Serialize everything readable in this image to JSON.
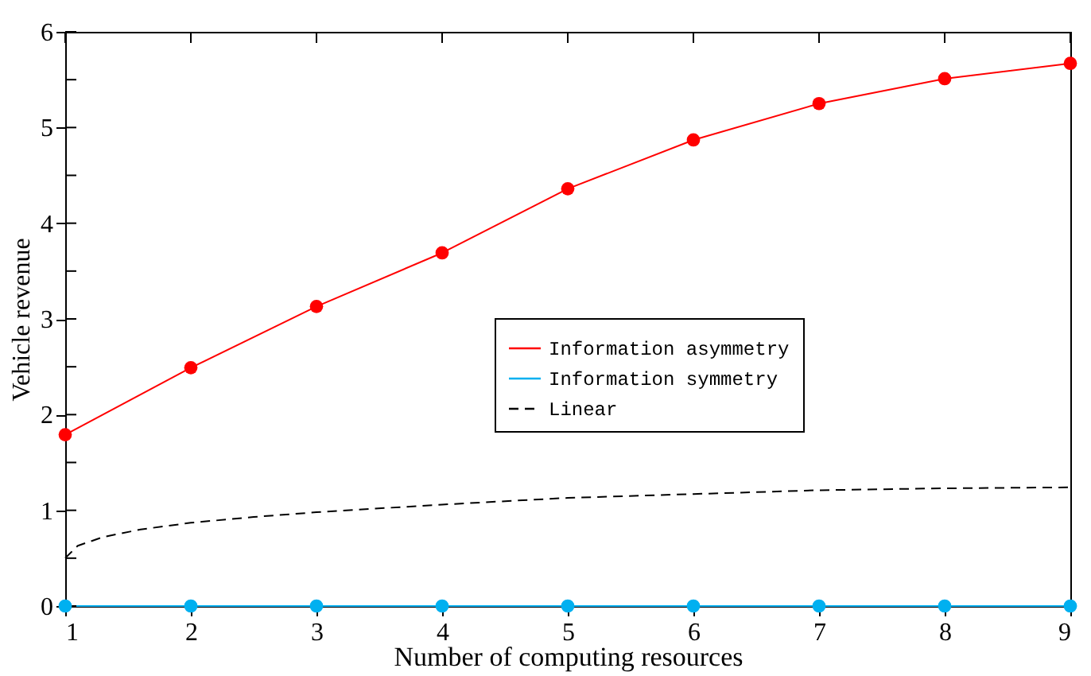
{
  "chart_data": {
    "type": "line",
    "xlabel": "Number of computing resources",
    "ylabel": "Vehicle revenue",
    "x": [
      1,
      2,
      3,
      4,
      5,
      6,
      7,
      8,
      9
    ],
    "series": [
      {
        "name": "Information asymmetry",
        "color": "#ff0000",
        "values": [
          1.79,
          2.49,
          3.13,
          3.69,
          4.36,
          4.87,
          5.25,
          5.51,
          5.67
        ],
        "marker": "circle",
        "line_style": "solid"
      },
      {
        "name": "Information symmetry",
        "color": "#00b0f0",
        "values": [
          0,
          0,
          0,
          0,
          0,
          0,
          0,
          0,
          0
        ],
        "marker": "circle",
        "line_style": "solid"
      },
      {
        "name": "Linear",
        "color": "#000000",
        "x": [
          1,
          1.1,
          1.3,
          1.6,
          2,
          2.5,
          3,
          4,
          5,
          6,
          7,
          8,
          9
        ],
        "values": [
          0.5,
          0.63,
          0.72,
          0.8,
          0.87,
          0.93,
          0.98,
          1.06,
          1.13,
          1.17,
          1.21,
          1.23,
          1.24
        ],
        "marker": "none",
        "line_style": "dashed"
      }
    ],
    "xlim": [
      1,
      9
    ],
    "xticks": [
      1,
      2,
      3,
      4,
      5,
      6,
      7,
      8,
      9
    ],
    "ylim": [
      0,
      6
    ],
    "yticks": [
      0,
      {
        "value": 0.5,
        "label": null
      },
      1,
      {
        "value": 1.5,
        "label": null
      },
      2,
      {
        "value": 2.5,
        "label": null
      },
      3,
      {
        "value": 3.5,
        "label": null
      },
      4,
      {
        "value": 4.5,
        "label": null
      },
      5,
      {
        "value": 5.5,
        "label": null
      },
      6
    ],
    "grid": false,
    "legend": "right"
  }
}
